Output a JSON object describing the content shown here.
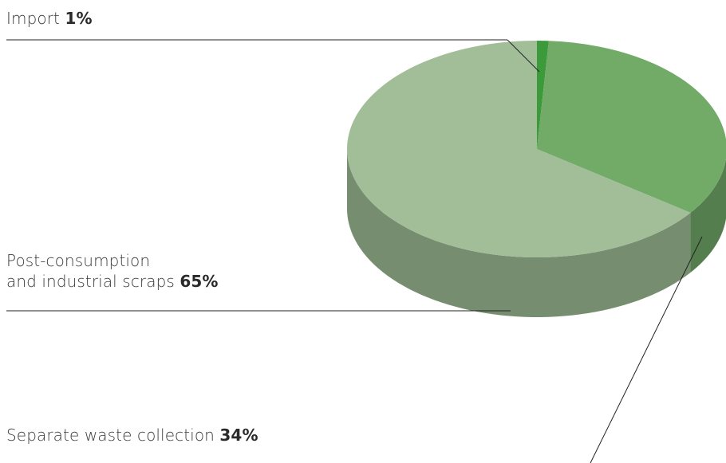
{
  "chart_data": {
    "type": "pie",
    "categories": [
      "Import",
      "Separate waste collection",
      "Post-consumption and industrial scraps"
    ],
    "values": [
      1,
      34,
      65
    ],
    "colors": {
      "import": "#3d9a3a",
      "separate": "#72aa68",
      "post": "#a1be98"
    },
    "labels": {
      "import": {
        "name": "Import",
        "value": "1%"
      },
      "post": {
        "line1": "Post-consumption",
        "line2": "and industrial scraps",
        "value": "65%"
      },
      "separate": {
        "name": "Separate waste collection",
        "value": "34%"
      }
    }
  }
}
